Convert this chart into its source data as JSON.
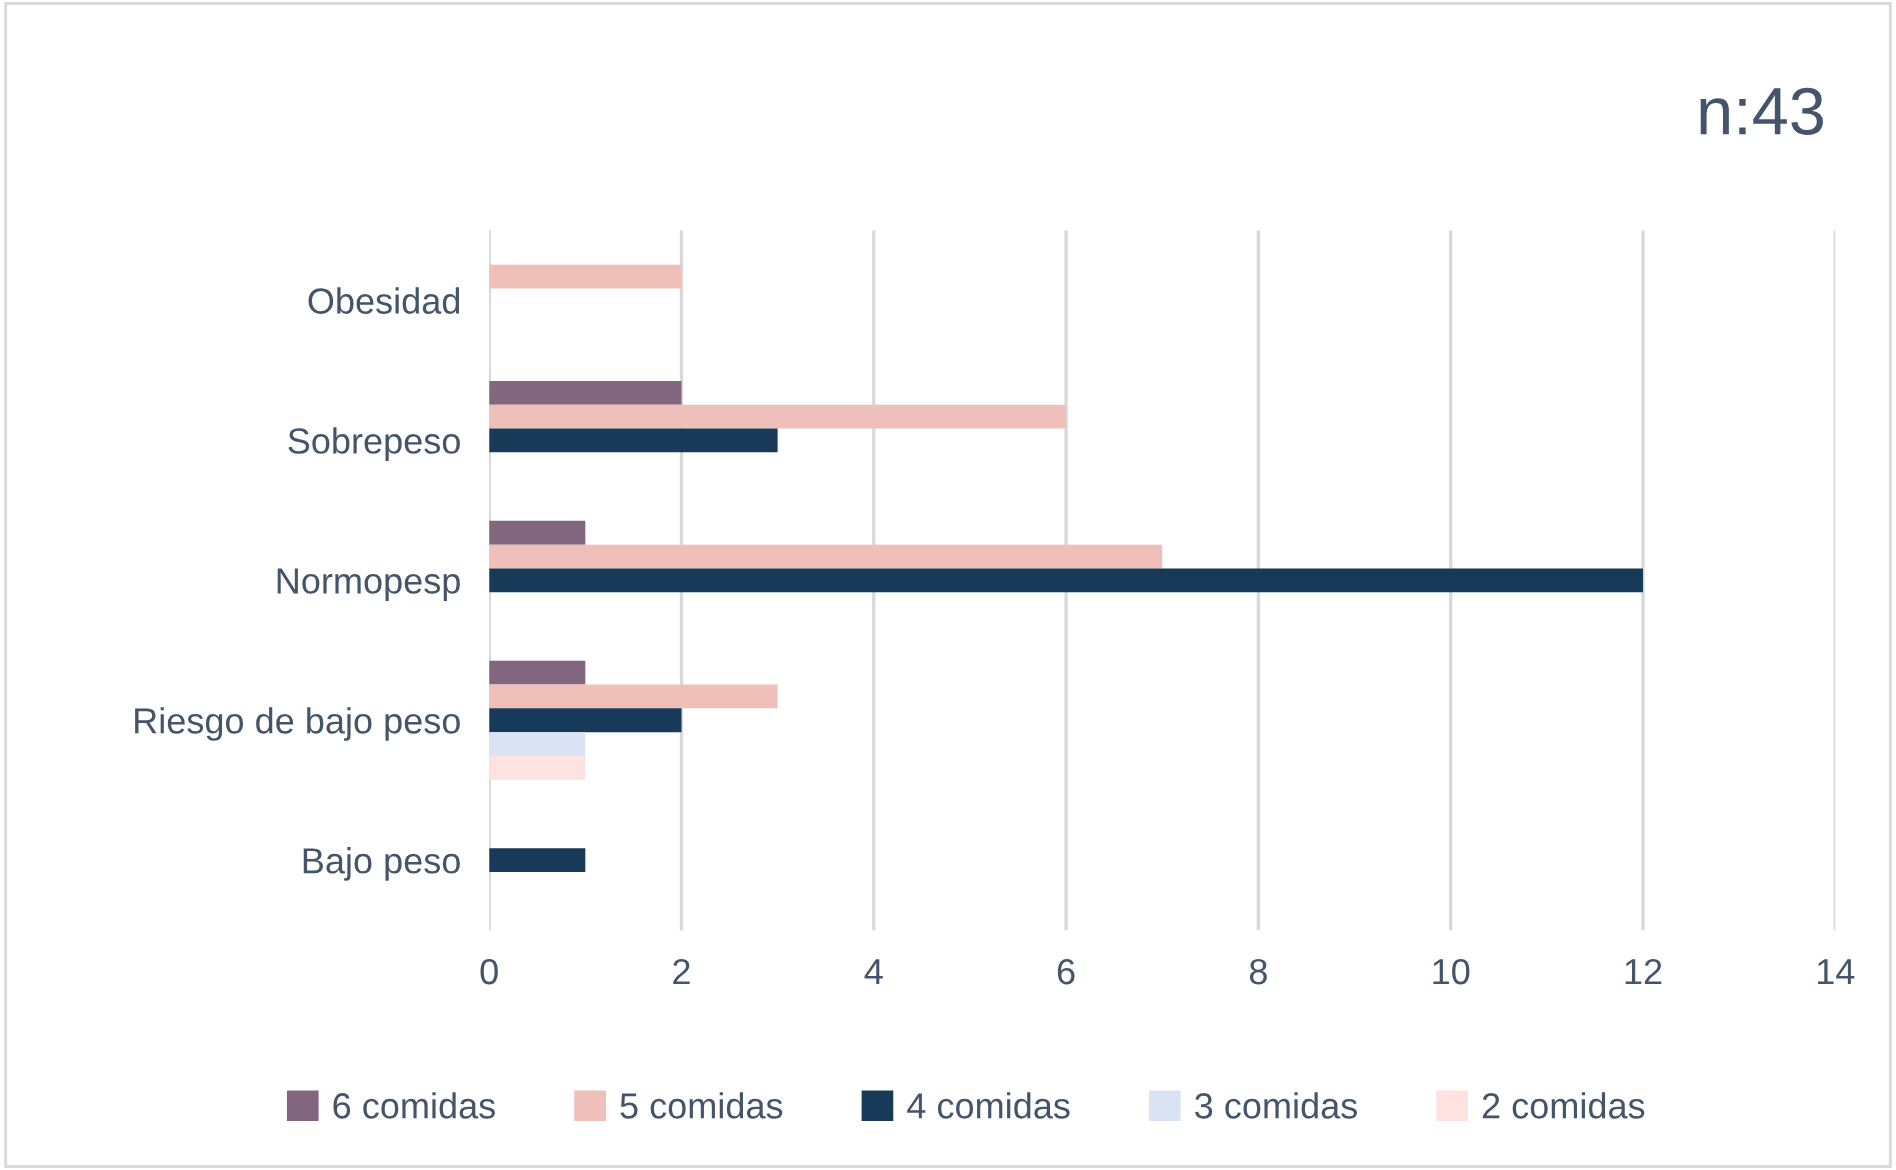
{
  "chart_data": {
    "type": "bar",
    "orientation": "horizontal",
    "title": "n:43",
    "categories": [
      "Obesidad",
      "Sobrepeso",
      "Normopesp",
      "Riesgo de bajo peso",
      "Bajo peso"
    ],
    "series": [
      {
        "name": "6 comidas",
        "color": "#826680",
        "values": [
          0,
          2,
          1,
          1,
          0
        ]
      },
      {
        "name": "5 comidas",
        "color": "#efbfb9",
        "values": [
          2,
          6,
          7,
          3,
          0
        ]
      },
      {
        "name": "4 comidas",
        "color": "#163a57",
        "values": [
          0,
          3,
          12,
          2,
          1
        ]
      },
      {
        "name": "3 comidas",
        "color": "#dae3f3",
        "values": [
          0,
          0,
          0,
          1,
          0
        ]
      },
      {
        "name": "2 comidas",
        "color": "#fde2df",
        "values": [
          0,
          0,
          0,
          1,
          0
        ]
      }
    ],
    "xlim": [
      0,
      14
    ],
    "xticks": [
      0,
      2,
      4,
      6,
      8,
      10,
      12,
      14
    ],
    "grid": "x",
    "legend": "bottom"
  }
}
